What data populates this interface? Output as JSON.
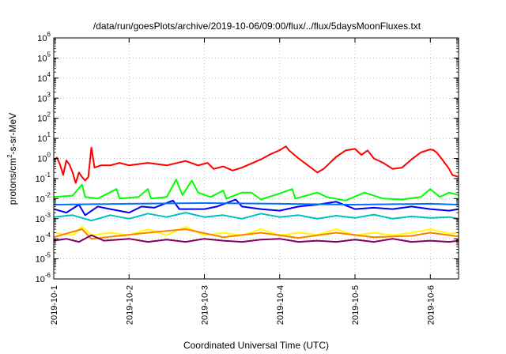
{
  "chart_data": {
    "type": "line",
    "title": "/data/run/goesPlots/archive/2019-10-06/09:00/flux/../flux/5daysMoonFluxes.txt",
    "xlabel": "Coordinated Universal Time (UTC)",
    "ylabel": {
      "base": "protons/cm",
      "sup": "2",
      "rest": "-s-sr-MeV"
    },
    "y_scale": "log",
    "ylim": [
      1e-06,
      1000000.0
    ],
    "y_ticks": [
      {
        "value": 1e-06,
        "base": "10",
        "exp": "-6"
      },
      {
        "value": 1e-05,
        "base": "10",
        "exp": "-5"
      },
      {
        "value": 0.0001,
        "base": "10",
        "exp": "-4"
      },
      {
        "value": 0.001,
        "base": "10",
        "exp": "-3"
      },
      {
        "value": 0.01,
        "base": "10",
        "exp": "-2"
      },
      {
        "value": 0.1,
        "base": "10",
        "exp": "-1"
      },
      {
        "value": 1,
        "base": "10",
        "exp": "0"
      },
      {
        "value": 10,
        "base": "10",
        "exp": "1"
      },
      {
        "value": 100,
        "base": "10",
        "exp": "2"
      },
      {
        "value": 1000,
        "base": "10",
        "exp": "3"
      },
      {
        "value": 10000,
        "base": "10",
        "exp": "4"
      },
      {
        "value": 100000,
        "base": "10",
        "exp": "5"
      },
      {
        "value": 1000000,
        "base": "10",
        "exp": "6"
      }
    ],
    "x_range": [
      "2019-10-01T00:00",
      "2019-10-06T09:00"
    ],
    "x_ticks": [
      {
        "value": "2019-10-01",
        "label": "2019-10-1"
      },
      {
        "value": "2019-10-02",
        "label": "2019-10-2"
      },
      {
        "value": "2019-10-03",
        "label": "2019-10-3"
      },
      {
        "value": "2019-10-04",
        "label": "2019-10-4"
      },
      {
        "value": "2019-10-05",
        "label": "2019-10-5"
      },
      {
        "value": "2019-10-06",
        "label": "2019-10-6"
      }
    ],
    "grid": true,
    "series": [
      {
        "color": "#ff0000",
        "points": [
          [
            "2019-10-01T00:00",
            0.8
          ],
          [
            "2019-10-01T01:00",
            1.1
          ],
          [
            "2019-10-01T02:00",
            0.5
          ],
          [
            "2019-10-01T03:00",
            0.15
          ],
          [
            "2019-10-01T04:00",
            0.8
          ],
          [
            "2019-10-01T05:00",
            0.5
          ],
          [
            "2019-10-01T06:00",
            0.2
          ],
          [
            "2019-10-01T07:00",
            0.06
          ],
          [
            "2019-10-01T08:00",
            0.2
          ],
          [
            "2019-10-01T09:00",
            0.12
          ],
          [
            "2019-10-01T10:00",
            0.08
          ],
          [
            "2019-10-01T11:00",
            0.12
          ],
          [
            "2019-10-01T12:00",
            3.5
          ],
          [
            "2019-10-01T13:00",
            0.35
          ],
          [
            "2019-10-01T15:00",
            0.45
          ],
          [
            "2019-10-01T18:00",
            0.45
          ],
          [
            "2019-10-01T21:00",
            0.6
          ],
          [
            "2019-10-02T00:00",
            0.45
          ],
          [
            "2019-10-02T06:00",
            0.6
          ],
          [
            "2019-10-02T12:00",
            0.45
          ],
          [
            "2019-10-02T18:00",
            0.75
          ],
          [
            "2019-10-02T22:00",
            0.45
          ],
          [
            "2019-10-03T01:00",
            0.6
          ],
          [
            "2019-10-03T03:00",
            0.3
          ],
          [
            "2019-10-03T06:00",
            0.4
          ],
          [
            "2019-10-03T09:00",
            0.25
          ],
          [
            "2019-10-03T12:00",
            0.35
          ],
          [
            "2019-10-03T18:00",
            0.9
          ],
          [
            "2019-10-03T21:00",
            1.6
          ],
          [
            "2019-10-04T00:00",
            2.6
          ],
          [
            "2019-10-04T02:00",
            4.0
          ],
          [
            "2019-10-04T03:00",
            2.5
          ],
          [
            "2019-10-04T06:00",
            1.0
          ],
          [
            "2019-10-04T09:00",
            0.45
          ],
          [
            "2019-10-04T12:00",
            0.2
          ],
          [
            "2019-10-04T14:00",
            0.3
          ],
          [
            "2019-10-04T18:00",
            1.2
          ],
          [
            "2019-10-04T21:00",
            2.5
          ],
          [
            "2019-10-05T00:00",
            3.0
          ],
          [
            "2019-10-05T02:00",
            1.5
          ],
          [
            "2019-10-05T04:00",
            2.5
          ],
          [
            "2019-10-05T06:00",
            1.0
          ],
          [
            "2019-10-05T09:00",
            0.6
          ],
          [
            "2019-10-05T12:00",
            0.3
          ],
          [
            "2019-10-05T15:00",
            0.35
          ],
          [
            "2019-10-05T18:00",
            0.9
          ],
          [
            "2019-10-05T21:00",
            2.0
          ],
          [
            "2019-10-06T00:00",
            2.8
          ],
          [
            "2019-10-06T01:00",
            2.6
          ],
          [
            "2019-10-06T02:00",
            2.0
          ],
          [
            "2019-10-06T04:00",
            0.8
          ],
          [
            "2019-10-06T06:00",
            0.3
          ],
          [
            "2019-10-06T07:00",
            0.15
          ],
          [
            "2019-10-06T09:00",
            0.12
          ]
        ]
      },
      {
        "color": "#00ff00",
        "points": [
          [
            "2019-10-01T00:00",
            0.012
          ],
          [
            "2019-10-01T06:00",
            0.014
          ],
          [
            "2019-10-01T09:00",
            0.05
          ],
          [
            "2019-10-01T10:00",
            0.012
          ],
          [
            "2019-10-01T14:00",
            0.01
          ],
          [
            "2019-10-01T20:00",
            0.03
          ],
          [
            "2019-10-01T21:00",
            0.01
          ],
          [
            "2019-10-02T03:00",
            0.012
          ],
          [
            "2019-10-02T06:00",
            0.03
          ],
          [
            "2019-10-02T07:00",
            0.01
          ],
          [
            "2019-10-02T12:00",
            0.012
          ],
          [
            "2019-10-02T15:00",
            0.09
          ],
          [
            "2019-10-02T17:00",
            0.015
          ],
          [
            "2019-10-02T20:00",
            0.08
          ],
          [
            "2019-10-02T22:00",
            0.02
          ],
          [
            "2019-10-03T02:00",
            0.012
          ],
          [
            "2019-10-03T06:00",
            0.025
          ],
          [
            "2019-10-03T07:00",
            0.01
          ],
          [
            "2019-10-03T12:00",
            0.02
          ],
          [
            "2019-10-03T15:00",
            0.02
          ],
          [
            "2019-10-03T18:00",
            0.009
          ],
          [
            "2019-10-04T00:00",
            0.018
          ],
          [
            "2019-10-04T04:00",
            0.03
          ],
          [
            "2019-10-04T05:00",
            0.01
          ],
          [
            "2019-10-04T12:00",
            0.02
          ],
          [
            "2019-10-04T15:00",
            0.012
          ],
          [
            "2019-10-04T21:00",
            0.008
          ],
          [
            "2019-10-05T03:00",
            0.02
          ],
          [
            "2019-10-05T09:00",
            0.01
          ],
          [
            "2019-10-05T15:00",
            0.009
          ],
          [
            "2019-10-05T21:00",
            0.012
          ],
          [
            "2019-10-06T00:00",
            0.03
          ],
          [
            "2019-10-06T03:00",
            0.012
          ],
          [
            "2019-10-06T06:00",
            0.02
          ],
          [
            "2019-10-06T09:00",
            0.015
          ]
        ]
      },
      {
        "color": "#0000ff",
        "points": [
          [
            "2019-10-01T00:00",
            0.003
          ],
          [
            "2019-10-01T04:00",
            0.002
          ],
          [
            "2019-10-01T08:00",
            0.005
          ],
          [
            "2019-10-01T10:00",
            0.0015
          ],
          [
            "2019-10-01T14:00",
            0.004
          ],
          [
            "2019-10-01T18:00",
            0.003
          ],
          [
            "2019-10-02T00:00",
            0.002
          ],
          [
            "2019-10-02T04:00",
            0.004
          ],
          [
            "2019-10-02T08:00",
            0.0035
          ],
          [
            "2019-10-02T14:00",
            0.008
          ],
          [
            "2019-10-02T16:00",
            0.003
          ],
          [
            "2019-10-03T00:00",
            0.003
          ],
          [
            "2019-10-03T04:00",
            0.004
          ],
          [
            "2019-10-03T10:00",
            0.009
          ],
          [
            "2019-10-03T12:00",
            0.004
          ],
          [
            "2019-10-03T18:00",
            0.003
          ],
          [
            "2019-10-04T00:00",
            0.0025
          ],
          [
            "2019-10-04T06:00",
            0.004
          ],
          [
            "2019-10-04T12:00",
            0.005
          ],
          [
            "2019-10-04T18:00",
            0.007
          ],
          [
            "2019-10-05T00:00",
            0.003
          ],
          [
            "2019-10-05T06:00",
            0.0035
          ],
          [
            "2019-10-05T12:00",
            0.003
          ],
          [
            "2019-10-05T18:00",
            0.004
          ],
          [
            "2019-10-06T00:00",
            0.003
          ],
          [
            "2019-10-06T06:00",
            0.0025
          ],
          [
            "2019-10-06T09:00",
            0.003
          ]
        ]
      },
      {
        "color": "#00c0c0",
        "points": [
          [
            "2019-10-01T00:00",
            0.0012
          ],
          [
            "2019-10-01T06:00",
            0.0015
          ],
          [
            "2019-10-01T12:00",
            0.0008
          ],
          [
            "2019-10-01T18:00",
            0.0015
          ],
          [
            "2019-10-02T00:00",
            0.001
          ],
          [
            "2019-10-02T06:00",
            0.0018
          ],
          [
            "2019-10-02T12:00",
            0.0012
          ],
          [
            "2019-10-02T18:00",
            0.002
          ],
          [
            "2019-10-03T00:00",
            0.0012
          ],
          [
            "2019-10-03T06:00",
            0.0015
          ],
          [
            "2019-10-03T12:00",
            0.001
          ],
          [
            "2019-10-03T18:00",
            0.0018
          ],
          [
            "2019-10-04T00:00",
            0.0012
          ],
          [
            "2019-10-04T06:00",
            0.0015
          ],
          [
            "2019-10-04T12:00",
            0.001
          ],
          [
            "2019-10-04T18:00",
            0.0014
          ],
          [
            "2019-10-05T00:00",
            0.0011
          ],
          [
            "2019-10-05T06:00",
            0.0016
          ],
          [
            "2019-10-05T12:00",
            0.001
          ],
          [
            "2019-10-05T18:00",
            0.0013
          ],
          [
            "2019-10-06T00:00",
            0.0011
          ],
          [
            "2019-10-06T06:00",
            0.0012
          ],
          [
            "2019-10-06T09:00",
            0.001
          ]
        ]
      },
      {
        "color": "#0070ff",
        "points": [
          [
            "2019-10-01T00:00",
            0.005
          ],
          [
            "2019-10-02T00:00",
            0.0055
          ],
          [
            "2019-10-03T00:00",
            0.006
          ],
          [
            "2019-10-04T00:00",
            0.0055
          ],
          [
            "2019-10-05T00:00",
            0.005
          ],
          [
            "2019-10-06T00:00",
            0.0055
          ],
          [
            "2019-10-06T09:00",
            0.005
          ]
        ]
      },
      {
        "color": "#ffff00",
        "points": [
          [
            "2019-10-01T00:00",
            0.0002
          ],
          [
            "2019-10-01T06:00",
            0.00015
          ],
          [
            "2019-10-01T09:00",
            0.0004
          ],
          [
            "2019-10-01T12:00",
            0.00015
          ],
          [
            "2019-10-01T18:00",
            0.0002
          ],
          [
            "2019-10-02T00:00",
            0.00015
          ],
          [
            "2019-10-02T06:00",
            0.0003
          ],
          [
            "2019-10-02T12:00",
            0.00015
          ],
          [
            "2019-10-02T18:00",
            0.0004
          ],
          [
            "2019-10-03T00:00",
            0.00015
          ],
          [
            "2019-10-03T06:00",
            0.0002
          ],
          [
            "2019-10-03T12:00",
            0.00015
          ],
          [
            "2019-10-03T18:00",
            0.0003
          ],
          [
            "2019-10-04T00:00",
            0.00015
          ],
          [
            "2019-10-04T06:00",
            0.0002
          ],
          [
            "2019-10-04T12:00",
            0.00016
          ],
          [
            "2019-10-04T18:00",
            0.0003
          ],
          [
            "2019-10-05T00:00",
            0.00015
          ],
          [
            "2019-10-05T06:00",
            0.0002
          ],
          [
            "2019-10-05T12:00",
            0.00015
          ],
          [
            "2019-10-05T18:00",
            0.0002
          ],
          [
            "2019-10-06T00:00",
            0.0003
          ],
          [
            "2019-10-06T06:00",
            0.00018
          ],
          [
            "2019-10-06T09:00",
            0.0002
          ]
        ]
      },
      {
        "color": "#ff8000",
        "points": [
          [
            "2019-10-01T00:00",
            0.00012
          ],
          [
            "2019-10-01T09:00",
            0.0003
          ],
          [
            "2019-10-01T12:00",
            0.0001
          ],
          [
            "2019-10-02T06:00",
            0.0002
          ],
          [
            "2019-10-02T18:00",
            0.0003
          ],
          [
            "2019-10-03T06:00",
            0.00012
          ],
          [
            "2019-10-03T18:00",
            0.0002
          ],
          [
            "2019-10-04T06:00",
            0.00011
          ],
          [
            "2019-10-04T18:00",
            0.0002
          ],
          [
            "2019-10-05T06:00",
            0.00012
          ],
          [
            "2019-10-05T18:00",
            0.00014
          ],
          [
            "2019-10-06T00:00",
            0.0002
          ],
          [
            "2019-10-06T09:00",
            0.00013
          ]
        ]
      },
      {
        "color": "#800060",
        "points": [
          [
            "2019-10-01T00:00",
            8e-05
          ],
          [
            "2019-10-01T04:00",
            0.0001
          ],
          [
            "2019-10-01T08:00",
            7e-05
          ],
          [
            "2019-10-01T12:00",
            0.00015
          ],
          [
            "2019-10-01T16:00",
            8e-05
          ],
          [
            "2019-10-02T00:00",
            0.0001
          ],
          [
            "2019-10-02T06:00",
            7e-05
          ],
          [
            "2019-10-02T12:00",
            9e-05
          ],
          [
            "2019-10-02T18:00",
            7e-05
          ],
          [
            "2019-10-03T00:00",
            0.0001
          ],
          [
            "2019-10-03T06:00",
            8e-05
          ],
          [
            "2019-10-03T12:00",
            7e-05
          ],
          [
            "2019-10-03T18:00",
            9e-05
          ],
          [
            "2019-10-04T00:00",
            0.0001
          ],
          [
            "2019-10-04T06:00",
            7e-05
          ],
          [
            "2019-10-04T12:00",
            8e-05
          ],
          [
            "2019-10-04T18:00",
            7e-05
          ],
          [
            "2019-10-05T00:00",
            9e-05
          ],
          [
            "2019-10-05T06:00",
            7e-05
          ],
          [
            "2019-10-05T12:00",
            0.0001
          ],
          [
            "2019-10-05T18:00",
            7e-05
          ],
          [
            "2019-10-06T00:00",
            8e-05
          ],
          [
            "2019-10-06T06:00",
            7e-05
          ],
          [
            "2019-10-06T09:00",
            8e-05
          ]
        ]
      }
    ]
  }
}
